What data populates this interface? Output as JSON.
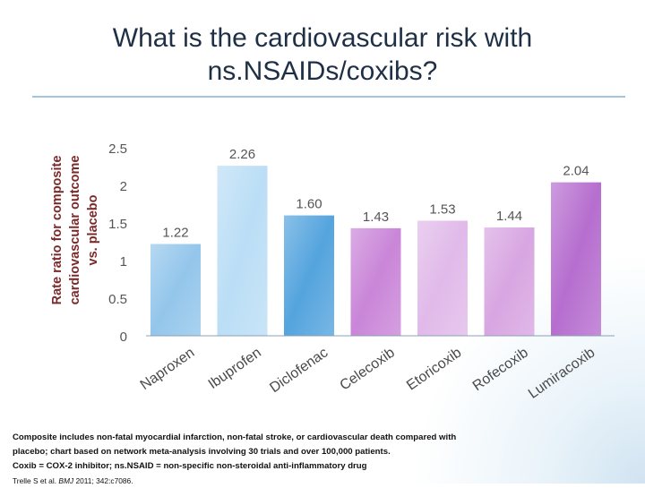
{
  "slide": {
    "title_line1": "What is the cardiovascular risk with",
    "title_line2": "ns.NSAIDs/coxibs?"
  },
  "chart_data": {
    "type": "bar",
    "categories": [
      "Naproxen",
      "Ibuprofen",
      "Diclofenac",
      "Celecoxib",
      "Etoricoxib",
      "Rofecoxib",
      "Lumiracoxib"
    ],
    "values": [
      1.22,
      2.26,
      1.6,
      1.43,
      1.53,
      1.44,
      2.04
    ],
    "value_labels": [
      "1.22",
      "2.26",
      "1.60",
      "1.43",
      "1.53",
      "1.44",
      "2.04"
    ],
    "ylabel_line1": "Rate ratio for composite",
    "ylabel_line2": "cardiovascular outcome",
    "ylabel_line3": "vs. placebo",
    "ylim": [
      0,
      2.5
    ],
    "yticks": [
      "0",
      "0.5",
      "1",
      "1.5",
      "2",
      "2.5"
    ],
    "ytick_values": [
      0,
      0.5,
      1,
      1.5,
      2,
      2.5
    ],
    "grid": false,
    "bar_colors": [
      "#8ec3ea",
      "#b7dcf5",
      "#4b9fdc",
      "#c77fd6",
      "#dfb6e8",
      "#d6a1e0",
      "#b266cc"
    ]
  },
  "footnote": {
    "line1": "Composite includes non-fatal myocardial infarction, non-fatal stroke, or cardiovascular death compared with",
    "line2": "placebo; chart based on network meta-analysis involving 30 trials and over 100,000 patients.",
    "line3": "Coxib = COX-2 inhibitor; ns.NSAID = non-specific non-steroidal anti-inflammatory drug",
    "ref_authors": "Trelle S et al.",
    "ref_journal": "BMJ",
    "ref_rest": "2011; 342:c7086."
  }
}
